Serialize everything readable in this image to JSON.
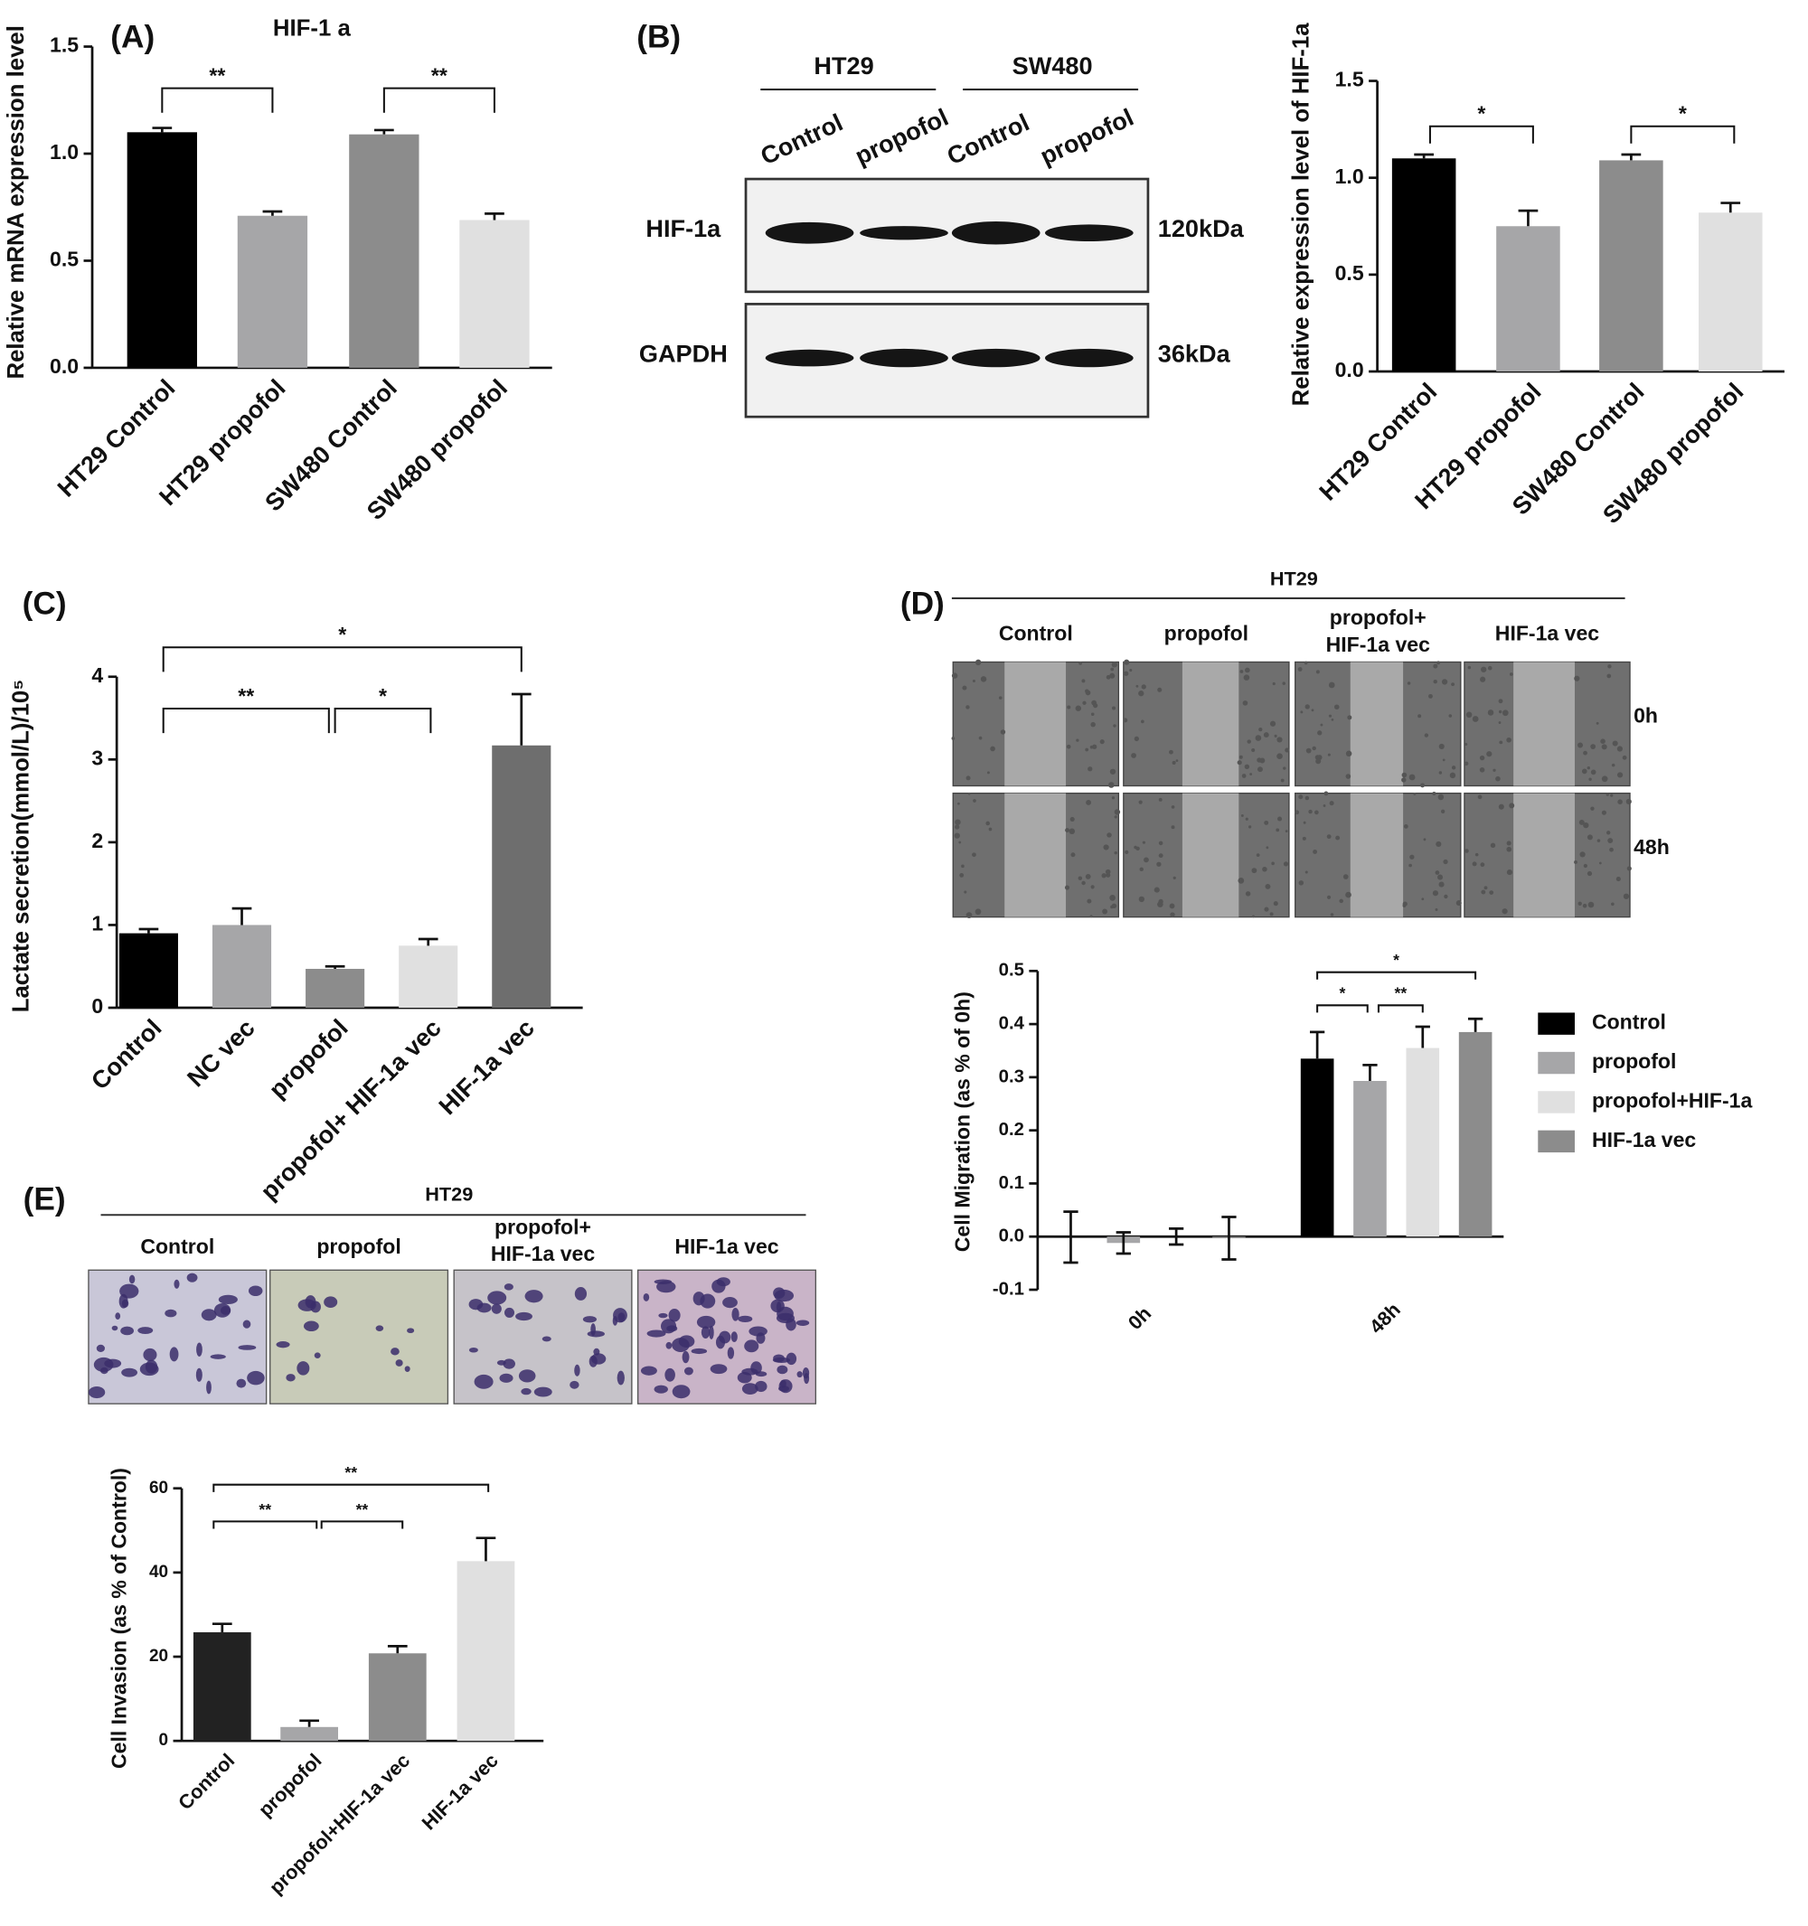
{
  "chart_data": [
    {
      "type": "bar",
      "panel": "(A)",
      "title": "HIF-1 a",
      "ylabel": "Relative mRNA expression level",
      "categories": [
        "HT29 Control",
        "HT29 propofol",
        "SW480 Control",
        "SW480 propofol"
      ],
      "values": [
        1.1,
        0.71,
        1.09,
        0.69
      ],
      "errors": [
        0.02,
        0.02,
        0.02,
        0.03
      ],
      "colors": [
        "#000000",
        "#a6a6a8",
        "#8c8c8c",
        "#e0e0e0"
      ],
      "ylim": [
        0,
        1.5
      ],
      "yticks": [
        {
          "value": 0,
          "label": "0.0"
        },
        {
          "value": 0.5,
          "label": "0.5"
        },
        {
          "value": 1,
          "label": "1.0"
        },
        {
          "value": 1.5,
          "label": "1.5"
        }
      ],
      "annotations": [
        "**",
        "**"
      ]
    },
    {
      "type": "bar",
      "ylabel": "Relative expression level of HIF-1a",
      "categories": [
        "HT29 Control",
        "HT29 propofol",
        "SW480 Control",
        "SW480 propofol"
      ],
      "values": [
        1.1,
        0.75,
        1.09,
        0.82
      ],
      "errors": [
        0.02,
        0.08,
        0.03,
        0.05
      ],
      "colors": [
        "#000000",
        "#a6a6a8",
        "#8c8c8c",
        "#e0e0e0"
      ],
      "ylim": [
        0,
        1.5
      ],
      "yticks": [
        {
          "value": 0,
          "label": "0.0"
        },
        {
          "value": 0.5,
          "label": "0.5"
        },
        {
          "value": 1,
          "label": "1.0"
        },
        {
          "value": 1.5,
          "label": "1.5"
        }
      ],
      "annotations": [
        "*",
        "*"
      ]
    },
    {
      "type": "bar",
      "panel": "(C)",
      "ylabel": "Lactate secretion(mmol/L)/10⁵",
      "categories": [
        "Control",
        "NC vec",
        "propofol",
        "propofol+ HIF-1a vec",
        "HIF-1a vec"
      ],
      "values": [
        0.9,
        1.0,
        0.47,
        0.75,
        3.17
      ],
      "errors": [
        0.05,
        0.2,
        0.03,
        0.08,
        0.62
      ],
      "colors": [
        "#000000",
        "#a6a6a8",
        "#8c8c8c",
        "#e0e0e0",
        "#6e6e6e"
      ],
      "ylim": [
        0,
        4
      ],
      "yticks": [
        0,
        1,
        2,
        3,
        4
      ],
      "annotations": [
        "*",
        "**",
        "*"
      ]
    },
    {
      "type": "grouped_bar",
      "ylabel": "Cell Migration (as % of 0h)",
      "categories": [
        "0h",
        "48h"
      ],
      "series": [
        {
          "name": "Control",
          "color": "#000000",
          "values": [
            -0.001,
            0.335
          ],
          "errors": [
            0.048,
            0.05
          ]
        },
        {
          "name": "propofol",
          "color": "#a6a6a8",
          "values": [
            -0.012,
            0.293
          ],
          "errors": [
            0.02,
            0.03
          ]
        },
        {
          "name": "propofol+HIF-1a",
          "color": "#e0e0e0",
          "values": [
            0.0,
            0.355
          ],
          "errors": [
            0.015,
            0.04
          ]
        },
        {
          "name": "HIF-1a vec",
          "color": "#8c8c8c",
          "values": [
            -0.003,
            0.385
          ],
          "errors": [
            0.04,
            0.025
          ]
        }
      ],
      "ylim": [
        -0.1,
        0.5
      ],
      "yticks": [
        {
          "value": -0.1,
          "label": "-0.1"
        },
        {
          "value": 0,
          "label": "0.0"
        },
        0.1,
        0.2,
        0.3,
        0.4,
        0.5
      ],
      "annotations": [
        "*",
        "*",
        "**"
      ]
    },
    {
      "type": "bar",
      "ylabel": "Cell Invasion  (as % of Control)",
      "categories": [
        "Control",
        "propofol",
        "propofol+HIF-1a vec",
        "HIF-1a vec"
      ],
      "values": [
        25.8,
        3.3,
        20.8,
        42.7
      ],
      "errors": [
        2,
        1.5,
        1.7,
        5.5
      ],
      "colors": [
        "#222222",
        "#a6a6a8",
        "#8c8c8c",
        "#e0e0e0"
      ],
      "ylim": [
        0,
        60
      ],
      "yticks": [
        0,
        20,
        40,
        60
      ],
      "annotations": [
        "**",
        "**",
        "**"
      ]
    }
  ],
  "blot": {
    "panel": "(B)",
    "groups": [
      "HT29",
      "SW480"
    ],
    "lanes": [
      "Control",
      "propofol",
      "Control",
      "propofol"
    ],
    "bands": [
      {
        "label": "HIF-1a",
        "size": "120kDa"
      },
      {
        "label": "GAPDH",
        "size": "36kDa"
      }
    ]
  },
  "wound": {
    "panel": "(D)",
    "title": "HT29",
    "columns": [
      [
        "Control"
      ],
      [
        "propofol"
      ],
      [
        "propofol+",
        "HIF-1a vec"
      ],
      [
        "HIF-1a vec"
      ]
    ],
    "rows": [
      "0h",
      "48h"
    ]
  },
  "invasion": {
    "panel": "(E)",
    "title": "HT29",
    "columns": [
      [
        "Control"
      ],
      [
        "propofol"
      ],
      [
        "propofol+",
        "HIF-1a vec"
      ],
      [
        "HIF-1a vec"
      ]
    ]
  }
}
